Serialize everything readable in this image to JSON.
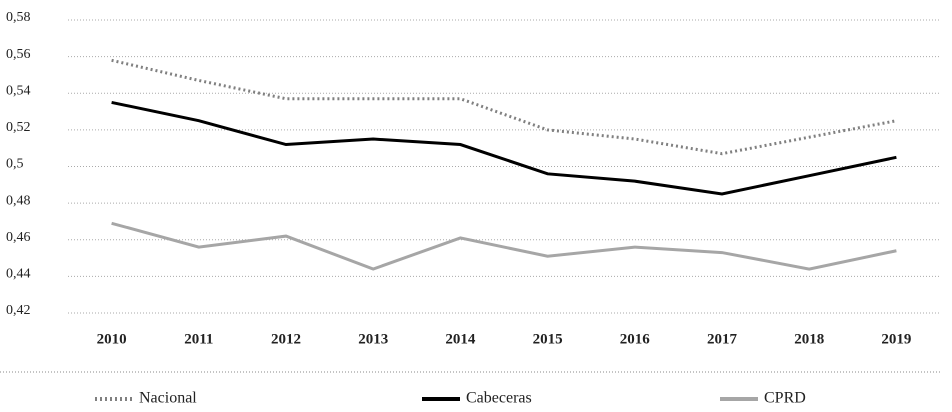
{
  "chart_data": {
    "type": "line",
    "categories": [
      "2010",
      "2011",
      "2012",
      "2013",
      "2014",
      "2015",
      "2016",
      "2017",
      "2018",
      "2019"
    ],
    "series": [
      {
        "name": "Nacional",
        "color": "#808080",
        "line_style": "dotted",
        "values": [
          0.558,
          0.547,
          0.537,
          0.537,
          0.537,
          0.52,
          0.515,
          0.507,
          0.516,
          0.525
        ]
      },
      {
        "name": "Cabeceras",
        "color": "#000000",
        "line_style": "solid",
        "values": [
          0.535,
          0.525,
          0.512,
          0.515,
          0.512,
          0.496,
          0.492,
          0.485,
          0.495,
          0.505
        ]
      },
      {
        "name": "CPRD",
        "color": "#a6a6a6",
        "line_style": "solid",
        "values": [
          0.469,
          0.456,
          0.462,
          0.444,
          0.461,
          0.451,
          0.456,
          0.453,
          0.444,
          0.454
        ]
      }
    ],
    "ylim": [
      0.42,
      0.58
    ],
    "yticks": [
      {
        "value": 0.42,
        "label": "0,42"
      },
      {
        "value": 0.44,
        "label": "0,44"
      },
      {
        "value": 0.46,
        "label": "0,46"
      },
      {
        "value": 0.48,
        "label": "0,48"
      },
      {
        "value": 0.5,
        "label": "0,5"
      },
      {
        "value": 0.52,
        "label": "0,52"
      },
      {
        "value": 0.54,
        "label": "0,54"
      },
      {
        "value": 0.56,
        "label": "0,56"
      },
      {
        "value": 0.58,
        "label": "0,58"
      }
    ],
    "grid": true,
    "legend": "bottom"
  }
}
